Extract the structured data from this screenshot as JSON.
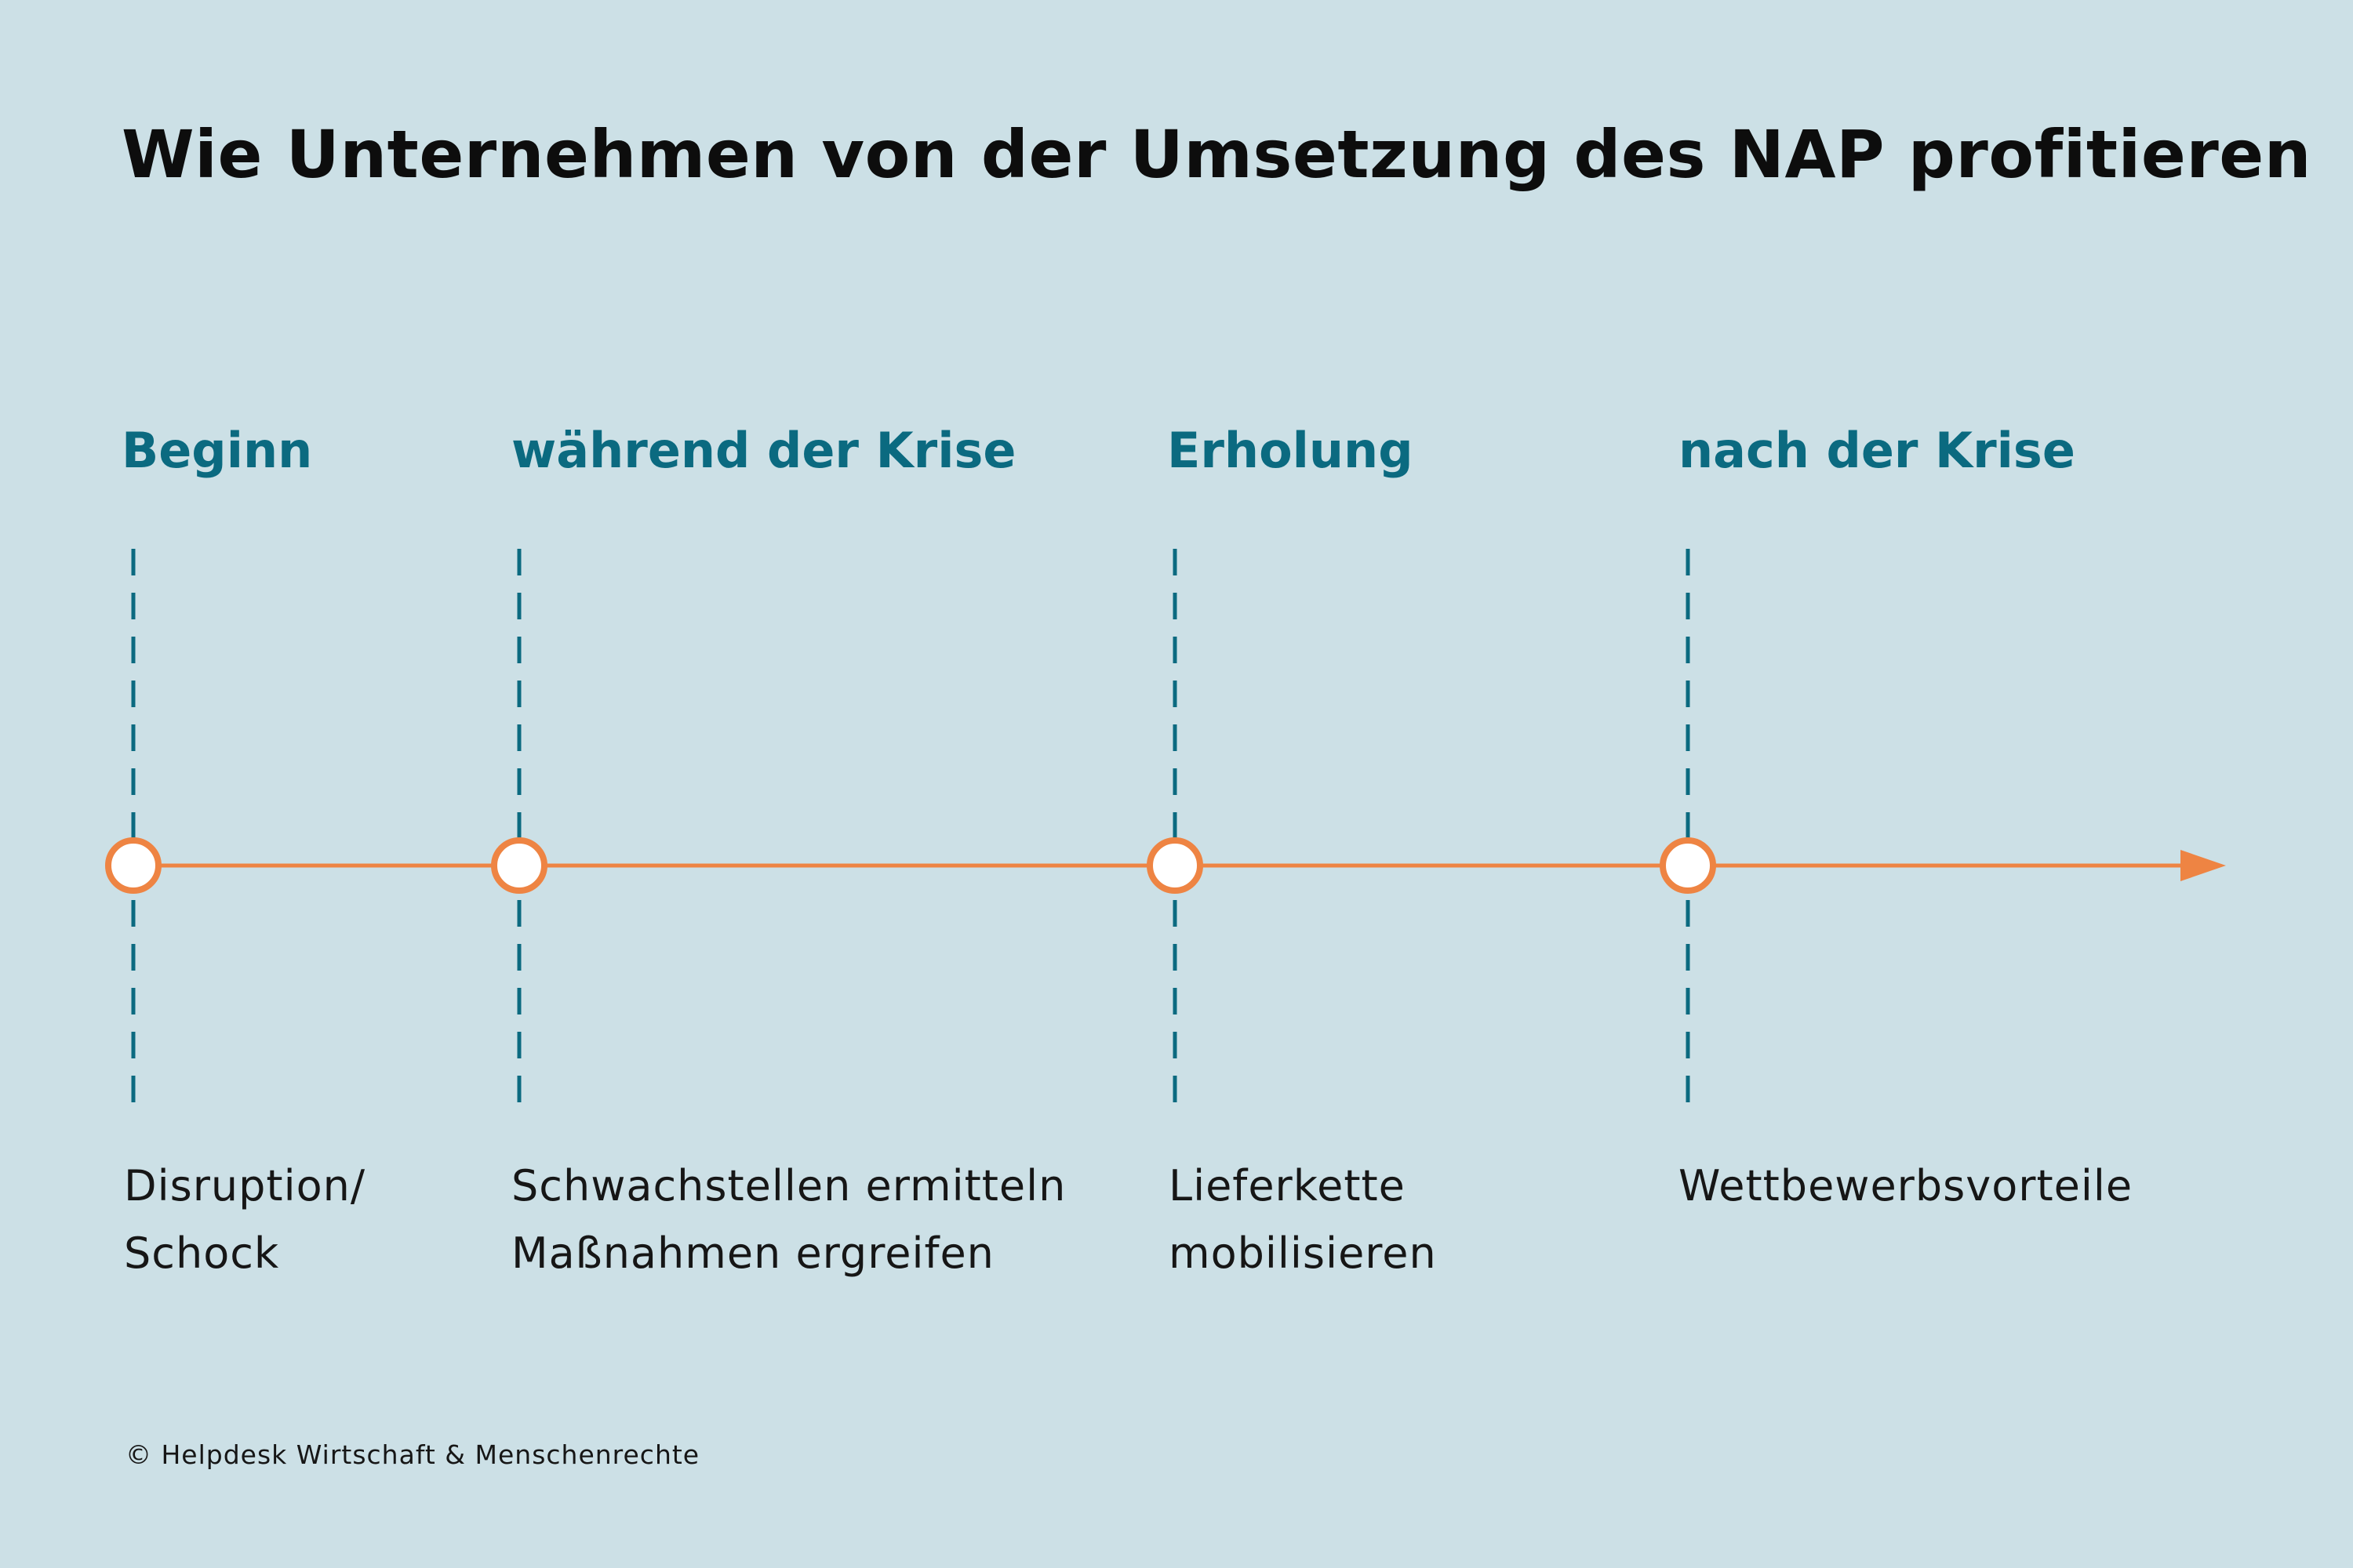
{
  "title": "Wie Unternehmen von der Umsetzung des NAP profitieren",
  "colors": {
    "background": "#cce0e6",
    "accent_teal": "#0b6a80",
    "timeline_orange": "#ee8443",
    "text": "#161616"
  },
  "phases": [
    {
      "label": "Beginn",
      "description": [
        "Disruption/",
        "Schock"
      ]
    },
    {
      "label": "während der Krise",
      "description": [
        "Schwachstellen ermitteln",
        "Maßnahmen ergreifen"
      ]
    },
    {
      "label": "Erholung",
      "description": [
        "Lieferkette",
        "mobilisieren"
      ]
    },
    {
      "label": "nach der Krise",
      "description": [
        "Wettbewerbsvorteile"
      ]
    }
  ],
  "footer": "© Helpdesk Wirtschaft & Menschenrechte"
}
